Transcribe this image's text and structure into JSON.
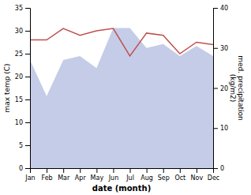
{
  "chart_data": {
    "type": "line",
    "categories": [
      "Jan",
      "Feb",
      "Mar",
      "Apr",
      "May",
      "Jun",
      "Jul",
      "Aug",
      "Sep",
      "Oct",
      "Nov",
      "Dec"
    ],
    "series": [
      {
        "type": "area",
        "color": "#c5cce8",
        "axis": "y2",
        "values": [
          27,
          18,
          27,
          28,
          25,
          35,
          35,
          30,
          31,
          28,
          30.5,
          28
        ]
      },
      {
        "type": "line",
        "color": "#c0504d",
        "values": [
          28,
          28,
          30.5,
          29,
          30,
          30.5,
          24.5,
          29.5,
          29,
          25,
          27.5,
          27
        ]
      }
    ],
    "xlabel": "date (month)",
    "ylabel": "max temp (C)",
    "y2label": "med. precipitation\n(kg/m2)",
    "ylim": [
      0,
      35
    ],
    "yticks": [
      0,
      5,
      10,
      15,
      20,
      25,
      30,
      35
    ],
    "y2lim": [
      0,
      40
    ],
    "y2ticks": [
      0,
      10,
      20,
      30,
      40
    ],
    "grid": false
  }
}
